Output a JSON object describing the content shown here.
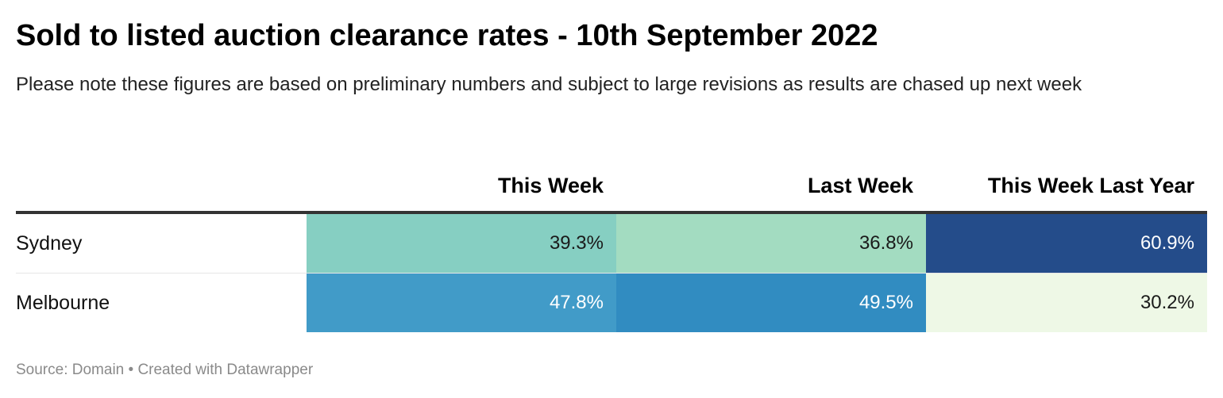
{
  "chart_data": {
    "type": "table",
    "title": "Sold to listed auction clearance rates - 10th September 2022",
    "subtitle": "Please note these figures are based on preliminary numbers and subject to large revisions as results are chased up next week",
    "columns": [
      "",
      "This Week",
      "Last Week",
      "This Week Last Year"
    ],
    "rows": [
      {
        "label": "Sydney",
        "cells": [
          {
            "text": "39.3%",
            "value": 39.3,
            "bg": "#86cfc2",
            "fg": "#1a1a1a"
          },
          {
            "text": "36.8%",
            "value": 36.8,
            "bg": "#a3dcc1",
            "fg": "#1a1a1a"
          },
          {
            "text": "60.9%",
            "value": 60.9,
            "bg": "#244c8a",
            "fg": "#ffffff"
          }
        ]
      },
      {
        "label": "Melbourne",
        "cells": [
          {
            "text": "47.8%",
            "value": 47.8,
            "bg": "#419bc8",
            "fg": "#ffffff"
          },
          {
            "text": "49.5%",
            "value": 49.5,
            "bg": "#318cc1",
            "fg": "#ffffff"
          },
          {
            "text": "30.2%",
            "value": 30.2,
            "bg": "#eef8e6",
            "fg": "#1a1a1a"
          }
        ]
      }
    ],
    "footer": "Source: Domain • Created with Datawrapper"
  }
}
